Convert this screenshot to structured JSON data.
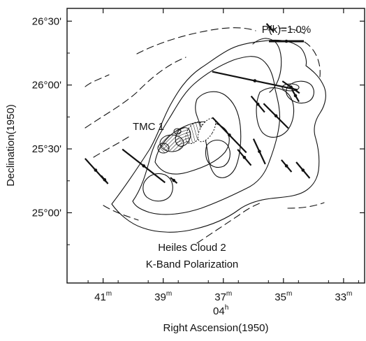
{
  "chart_data": {
    "type": "scatter",
    "xlabel": "Right Ascension(1950)",
    "ylabel": "Declination(1950)",
    "x_unit_label": "04",
    "x_unit_sup": "h",
    "xlim_minutes": [
      42.2,
      32.3
    ],
    "ylim_arcmin": [
      1467,
      1596
    ],
    "grid": false,
    "x_ticks": [
      {
        "value": 41,
        "label": "41",
        "sup": "m"
      },
      {
        "value": 39,
        "label": "39",
        "sup": "m"
      },
      {
        "value": 37,
        "label": "37",
        "sup": "m"
      },
      {
        "value": 35,
        "label": "35",
        "sup": "m"
      },
      {
        "value": 33,
        "label": "33",
        "sup": "m"
      }
    ],
    "y_ticks": [
      {
        "value": 1590,
        "label": "26°30'"
      },
      {
        "value": 1560,
        "label": "26°00'"
      },
      {
        "value": 1530,
        "label": "25°30'"
      },
      {
        "value": 1500,
        "label": "25°00'"
      }
    ],
    "source_label": "TMC 1",
    "scale_label": "P(k)=1.0%",
    "scale_length_percent": 1.0,
    "caption_lines": [
      "Heiles Cloud 2",
      "K-Band Polarization"
    ],
    "series": [
      {
        "values": [
          {
            "ra": 41.25,
            "dec": 1520.0,
            "p": 0.9,
            "pa": 138
          },
          {
            "ra": 40.95,
            "dec": 1515.5,
            "p": 0.3,
            "pa": 140
          },
          {
            "ra": 39.65,
            "dec": 1522.0,
            "p": 1.55,
            "pa": 128
          },
          {
            "ra": 38.65,
            "dec": 1515.2,
            "p": 0.25,
            "pa": 130
          },
          {
            "ra": 36.8,
            "dec": 1536.5,
            "p": 1.4,
            "pa": 136
          },
          {
            "ra": 36.3,
            "dec": 1526.0,
            "p": 0.6,
            "pa": 140
          },
          {
            "ra": 35.95,
            "dec": 1562.0,
            "p": 2.5,
            "pa": 102
          },
          {
            "ra": 35.8,
            "dec": 1528.8,
            "p": 0.8,
            "pa": 155
          },
          {
            "ra": 35.85,
            "dec": 1551.0,
            "p": 0.6,
            "pa": 140
          },
          {
            "ra": 35.25,
            "dec": 1545.5,
            "p": 1.0,
            "pa": 135
          },
          {
            "ra": 34.75,
            "dec": 1559.0,
            "p": 0.6,
            "pa": 125
          },
          {
            "ra": 34.35,
            "dec": 1520.0,
            "p": 0.6,
            "pa": 140
          },
          {
            "ra": 34.9,
            "dec": 1522.0,
            "p": 0.45,
            "pa": 140
          },
          {
            "ra": 35.45,
            "dec": 1587.0,
            "p": 0.3,
            "pa": 140
          },
          {
            "ra": 34.6,
            "dec": 1555.0,
            "p": 0.4,
            "pa": 150
          }
        ]
      }
    ]
  },
  "figure": {
    "colors": {
      "ink": "#111111",
      "background": "#ffffff"
    }
  }
}
